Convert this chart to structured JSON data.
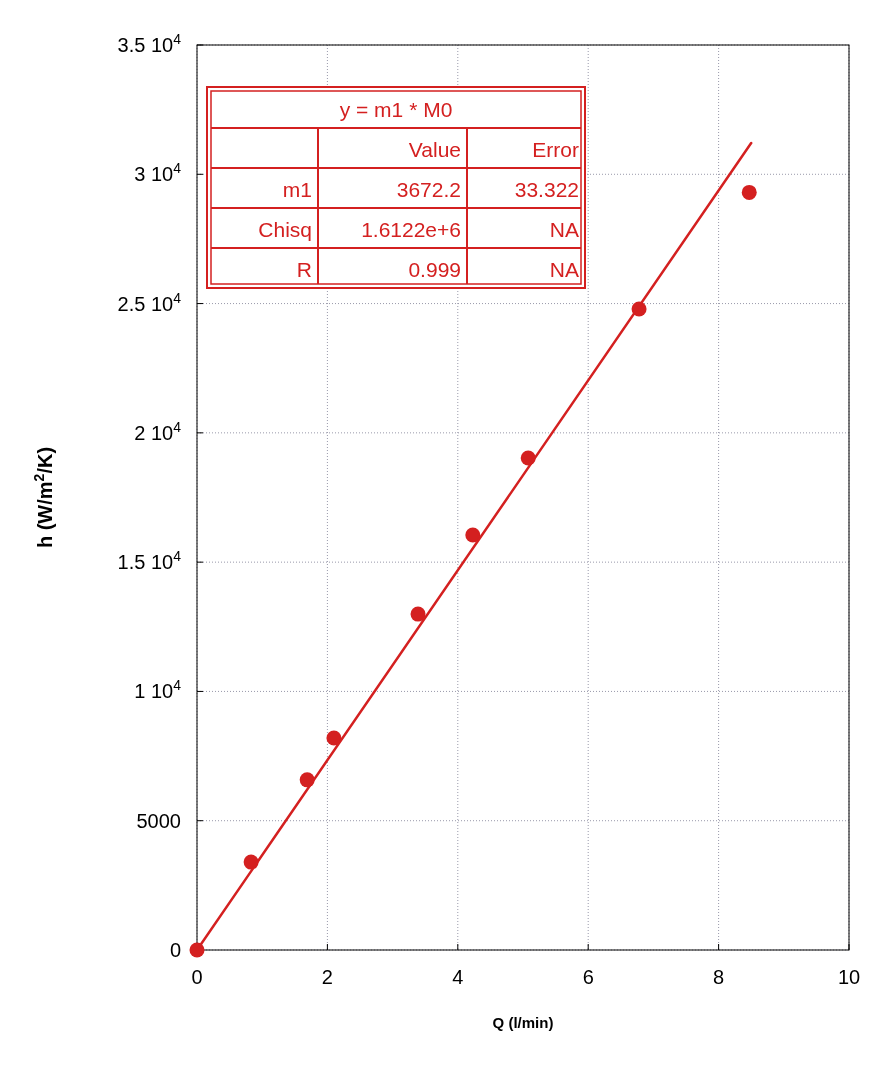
{
  "chart_data": {
    "type": "scatter",
    "xlabel": "Q (l/min)",
    "ylabel": "h (W/m$^{2}$/K)",
    "xlim": [
      0,
      10
    ],
    "xticks": [
      0,
      2,
      4,
      6,
      8,
      10
    ],
    "ylim": [
      0,
      35000
    ],
    "yticks": [
      0,
      5000,
      {
        "value": 10000,
        "label": "1 10$^{4}$"
      },
      {
        "value": 15000,
        "label": "1.5 10$^{4}$"
      },
      {
        "value": 20000,
        "label": "2 10$^{4}$"
      },
      {
        "value": 25000,
        "label": "2.5 10$^{4}$"
      },
      {
        "value": 30000,
        "label": "3 10$^{4}$"
      },
      {
        "value": 35000,
        "label": "3.5 10$^{4}$"
      }
    ],
    "grid": true,
    "series": [
      {
        "color": "#d42020",
        "marker": "circle",
        "x": [
          0,
          0.83,
          1.69,
          2.1,
          3.39,
          4.23,
          5.08,
          6.78,
          8.47
        ],
        "values": [
          0,
          3400,
          6580,
          8200,
          12990,
          16050,
          19030,
          24790,
          29300
        ]
      },
      {
        "type": "line",
        "color": "#d42020",
        "marker": "none",
        "x": [
          0,
          8.5
        ],
        "values": [
          0,
          31210
        ]
      }
    ],
    "annotations": [
      "y = m1 * M0",
      "Value",
      "Error",
      "m1",
      "3672.2",
      "33.322",
      "Chisq",
      "1.6122e+6",
      "NA",
      "R",
      "0.999",
      "NA"
    ]
  }
}
